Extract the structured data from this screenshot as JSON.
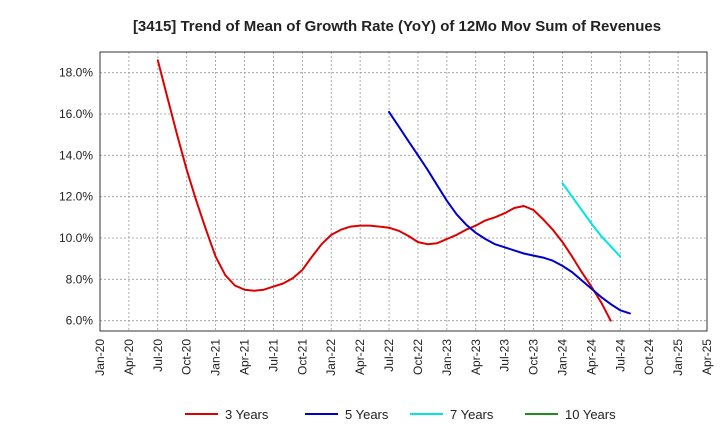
{
  "chart_data": {
    "type": "line",
    "title": "[3415]  Trend of Mean of Growth Rate (YoY) of 12Mo Mov Sum of Revenues",
    "xlabel": "",
    "ylabel": "",
    "x_ticks": [
      "Jan-20",
      "Apr-20",
      "Jul-20",
      "Oct-20",
      "Jan-21",
      "Apr-21",
      "Jul-21",
      "Oct-21",
      "Jan-22",
      "Apr-22",
      "Jul-22",
      "Oct-22",
      "Jan-23",
      "Apr-23",
      "Jul-23",
      "Oct-23",
      "Jan-24",
      "Apr-24",
      "Jul-24",
      "Oct-24",
      "Jan-25",
      "Apr-25"
    ],
    "y_ticks": [
      "6.0%",
      "8.0%",
      "10.0%",
      "12.0%",
      "14.0%",
      "16.0%",
      "18.0%"
    ],
    "y_tick_values": [
      6,
      8,
      10,
      12,
      14,
      16,
      18
    ],
    "ylim": [
      5.5,
      19.0
    ],
    "grid": true,
    "legend_position": "bottom",
    "series": [
      {
        "name": "3 Years",
        "color": "#dd0000",
        "points": [
          [
            6,
            18.6
          ],
          [
            7,
            16.8
          ],
          [
            8,
            15.0
          ],
          [
            9,
            13.3
          ],
          [
            10,
            11.8
          ],
          [
            11,
            10.4
          ],
          [
            12,
            9.1
          ],
          [
            13,
            8.2
          ],
          [
            14,
            7.7
          ],
          [
            15,
            7.5
          ],
          [
            16,
            7.45
          ],
          [
            17,
            7.5
          ],
          [
            18,
            7.65
          ],
          [
            19,
            7.8
          ],
          [
            20,
            8.05
          ],
          [
            21,
            8.45
          ],
          [
            22,
            9.1
          ],
          [
            23,
            9.7
          ],
          [
            24,
            10.15
          ],
          [
            25,
            10.4
          ],
          [
            26,
            10.55
          ],
          [
            27,
            10.6
          ],
          [
            28,
            10.6
          ],
          [
            29,
            10.55
          ],
          [
            30,
            10.5
          ],
          [
            31,
            10.35
          ],
          [
            32,
            10.1
          ],
          [
            33,
            9.8
          ],
          [
            34,
            9.7
          ],
          [
            35,
            9.75
          ],
          [
            36,
            9.95
          ],
          [
            37,
            10.15
          ],
          [
            38,
            10.4
          ],
          [
            39,
            10.6
          ],
          [
            40,
            10.85
          ],
          [
            41,
            11.0
          ],
          [
            42,
            11.2
          ],
          [
            43,
            11.45
          ],
          [
            44,
            11.55
          ],
          [
            45,
            11.35
          ],
          [
            46,
            10.9
          ],
          [
            47,
            10.4
          ],
          [
            48,
            9.8
          ],
          [
            49,
            9.1
          ],
          [
            50,
            8.35
          ],
          [
            51,
            7.65
          ],
          [
            52,
            6.9
          ],
          [
            53,
            6.0
          ]
        ]
      },
      {
        "name": "5 Years",
        "color": "#0000cc",
        "points": [
          [
            30,
            16.1
          ],
          [
            31,
            15.4
          ],
          [
            32,
            14.7
          ],
          [
            33,
            14.0
          ],
          [
            34,
            13.3
          ],
          [
            35,
            12.55
          ],
          [
            36,
            11.8
          ],
          [
            37,
            11.15
          ],
          [
            38,
            10.65
          ],
          [
            39,
            10.25
          ],
          [
            40,
            9.95
          ],
          [
            41,
            9.7
          ],
          [
            42,
            9.55
          ],
          [
            43,
            9.4
          ],
          [
            44,
            9.25
          ],
          [
            45,
            9.15
          ],
          [
            46,
            9.05
          ],
          [
            47,
            8.9
          ],
          [
            48,
            8.65
          ],
          [
            49,
            8.35
          ],
          [
            50,
            7.95
          ],
          [
            51,
            7.55
          ],
          [
            52,
            7.15
          ],
          [
            53,
            6.8
          ],
          [
            54,
            6.5
          ],
          [
            55,
            6.35
          ]
        ]
      },
      {
        "name": "7 Years",
        "color": "#00e5e5",
        "points": [
          [
            48,
            12.65
          ],
          [
            49,
            12.0
          ],
          [
            50,
            11.35
          ],
          [
            51,
            10.7
          ],
          [
            52,
            10.1
          ],
          [
            53,
            9.6
          ],
          [
            54,
            9.1
          ]
        ]
      },
      {
        "name": "10 Years",
        "color": "#228b22",
        "points": []
      }
    ]
  }
}
